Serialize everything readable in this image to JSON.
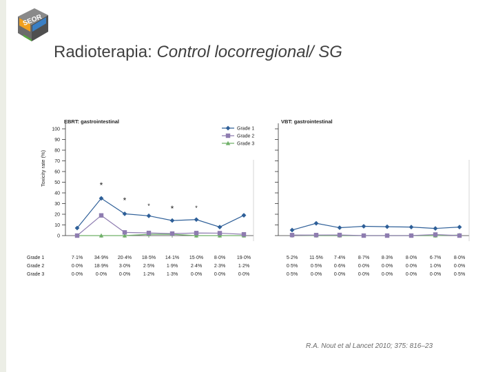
{
  "slide": {
    "logo_text": "SEOR",
    "title_plain": "Radioterapia: ",
    "title_italic": "Control locorregional/ SG",
    "citation": "R.A. Nout et al Lancet 2010; 375: 816–23"
  },
  "colors": {
    "grade1": "#2e5f98",
    "grade2": "#8e7cb0",
    "grade3": "#6fb068",
    "axis": "#333333",
    "text": "#222222"
  },
  "chart_data": [
    {
      "type": "line",
      "title": "EBRT: gastrointestinal",
      "ylabel": "Toxicity rate (%)",
      "ylim": [
        0,
        100
      ],
      "yticks": [
        0,
        10,
        20,
        30,
        40,
        50,
        60,
        70,
        80,
        90,
        100
      ],
      "x": [
        1,
        2,
        3,
        4,
        5,
        6,
        7,
        8
      ],
      "legend": {
        "position": "top-right",
        "entries": [
          "Grade 1",
          "Grade 2",
          "Grade 3"
        ]
      },
      "significance_marks": [
        "*",
        "*",
        "*",
        "*",
        "*",
        "*"
      ],
      "series": [
        {
          "name": "Grade 1",
          "marker": "diamond",
          "values": [
            7.1,
            34.9,
            20.4,
            18.5,
            14.1,
            15.0,
            8.0,
            19.0
          ],
          "labels": [
            "7·1%",
            "34·9%",
            "20·4%",
            "18·5%",
            "14·1%",
            "15·0%",
            "8·0%",
            "19·0%"
          ]
        },
        {
          "name": "Grade 2",
          "marker": "square",
          "values": [
            0.0,
            18.9,
            3.0,
            2.5,
            1.9,
            2.4,
            2.3,
            1.2
          ],
          "labels": [
            "0·0%",
            "18·9%",
            "3·0%",
            "2·5%",
            "1·9%",
            "2·4%",
            "2·3%",
            "1·2%"
          ]
        },
        {
          "name": "Grade 3",
          "marker": "triangle",
          "values": [
            0.0,
            0.0,
            0.0,
            1.2,
            1.3,
            0.0,
            0.0,
            0.0
          ],
          "labels": [
            "0·0%",
            "0·0%",
            "0·0%",
            "1·2%",
            "1·3%",
            "0·0%",
            "0·0%",
            "0·0%"
          ]
        }
      ],
      "row_labels": [
        "Grade 1",
        "Grade 2",
        "Grade 3"
      ]
    },
    {
      "type": "line",
      "title": "VBT: gastrointestinal",
      "ylim": [
        0,
        100
      ],
      "x": [
        1,
        2,
        3,
        4,
        5,
        6,
        7,
        8
      ],
      "series": [
        {
          "name": "Grade 1",
          "marker": "diamond",
          "values": [
            5.2,
            11.5,
            7.4,
            8.7,
            8.3,
            8.0,
            6.7,
            8.0
          ],
          "labels": [
            "5·2%",
            "11·5%",
            "7·4%",
            "8·7%",
            "8·3%",
            "8·0%",
            "6·7%",
            "8·0%"
          ]
        },
        {
          "name": "Grade 2",
          "marker": "square",
          "values": [
            0.5,
            0.5,
            0.6,
            0.0,
            0.0,
            0.0,
            1.0,
            0.0
          ],
          "labels": [
            "0·5%",
            "0·5%",
            "0·6%",
            "0·0%",
            "0·0%",
            "0·0%",
            "1·0%",
            "0·0%"
          ]
        },
        {
          "name": "Grade 3",
          "marker": "triangle",
          "values": [
            0.5,
            0.0,
            0.0,
            0.0,
            0.0,
            0.0,
            0.0,
            0.5
          ],
          "labels": [
            "0·5%",
            "0·0%",
            "0·0%",
            "0·0%",
            "0·0%",
            "0·0%",
            "0·0%",
            "0·5%"
          ]
        }
      ]
    }
  ]
}
